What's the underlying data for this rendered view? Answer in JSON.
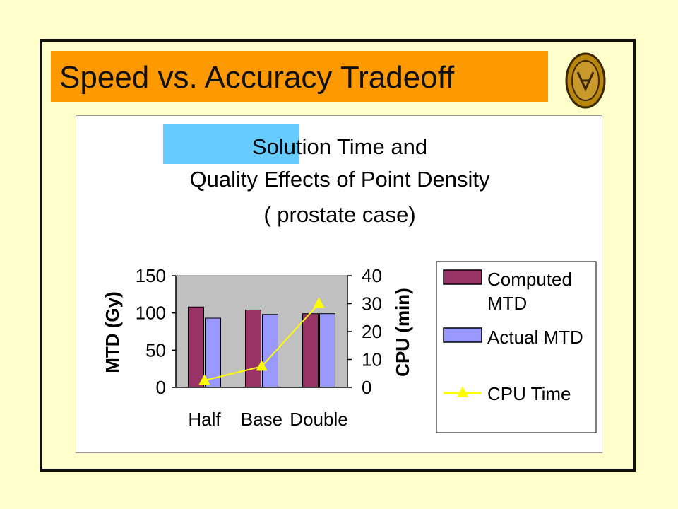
{
  "slide": {
    "title": "Speed vs. Accuracy Tradeoff",
    "colors": {
      "background": "#ffffcc",
      "title_bar": "#ff9900",
      "title_highlight": "#66ccff"
    },
    "logo_icon": "university-seal-icon"
  },
  "chart_data": {
    "type": "bar",
    "title_lines": [
      "Solution Time and",
      "Quality Effects of Point Density",
      "( prostate case)"
    ],
    "categories": [
      "Half",
      "Base",
      "Double"
    ],
    "ylabel": "MTD (Gy)",
    "y2label": "CPU (min)",
    "ylim": [
      0,
      150
    ],
    "y2lim": [
      0,
      40
    ],
    "yticks": [
      "0",
      "50",
      "100",
      "150"
    ],
    "y2ticks": [
      "0",
      "10",
      "20",
      "30",
      "40"
    ],
    "series": [
      {
        "name": "Computed MTD",
        "type": "bar",
        "axis": "left",
        "color": "#993366",
        "values": [
          108,
          104,
          99
        ]
      },
      {
        "name": "Actual MTD",
        "type": "bar",
        "axis": "left",
        "color": "#9999ff",
        "values": [
          93,
          98,
          99
        ]
      },
      {
        "name": "CPU Time",
        "type": "line",
        "axis": "right",
        "color": "#ffff00",
        "values": [
          2.5,
          7.5,
          30
        ]
      }
    ],
    "legend": {
      "position": "right",
      "entries": [
        {
          "line1": "Computed",
          "line2": "MTD"
        },
        {
          "line1": "Actual MTD",
          "line2": ""
        },
        {
          "line1": "CPU Time",
          "line2": ""
        }
      ]
    },
    "plot_background": "#c0c0c0",
    "grid": false
  }
}
